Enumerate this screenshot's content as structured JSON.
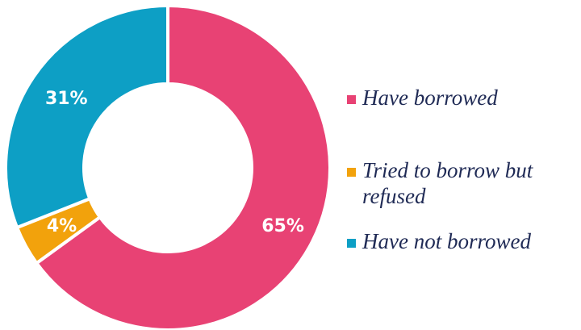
{
  "chart_data": {
    "type": "pie",
    "donut": true,
    "categories": [
      "Have borrowed",
      "Tried to borrow but refused",
      "Have not borrowed"
    ],
    "values": [
      65,
      4,
      31
    ],
    "data_labels": [
      "65%",
      "4%",
      "31%"
    ],
    "colors": [
      "#e84274",
      "#f2a20c",
      "#0d9fc5"
    ],
    "legend_placement": "right",
    "title": ""
  }
}
